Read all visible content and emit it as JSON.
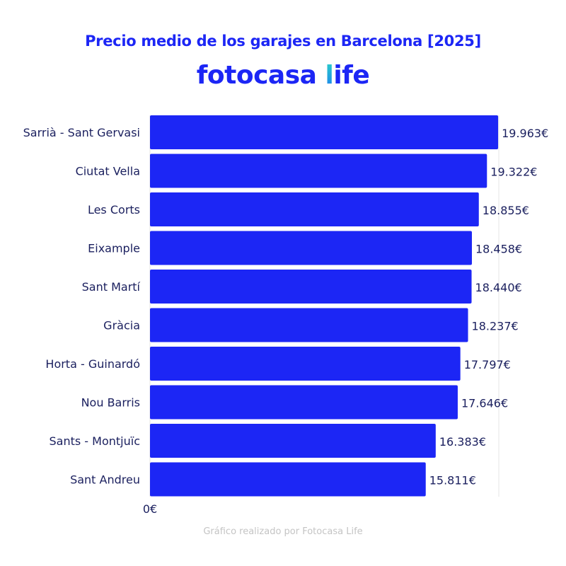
{
  "title": "Precio medio de los garajes en Barcelona [2025]",
  "logo": {
    "brand": "fotocasa",
    "suffix_first": "l",
    "suffix_rest": "ife"
  },
  "footer": "Gráfico realizado por Fotocasa Life",
  "colors": {
    "bar": "#1c26f5",
    "text": "#1a1f5e",
    "accent": "#1c26f5",
    "grid": "#e6e6e6"
  },
  "chart_data": {
    "type": "bar",
    "orientation": "horizontal",
    "title": "Precio medio de los garajes en Barcelona [2025]",
    "categories": [
      "Sarrià - Sant Gervasi",
      "Ciutat Vella",
      "Les Corts",
      "Eixample",
      "Sant Martí",
      "Gràcia",
      "Horta - Guinardó",
      "Nou Barris",
      "Sants - Montjuïc",
      "Sant Andreu"
    ],
    "values": [
      19963,
      19322,
      18855,
      18458,
      18440,
      18237,
      17797,
      17646,
      16383,
      15811
    ],
    "data_labels": [
      "19.963€",
      "19.322€",
      "18.855€",
      "18.458€",
      "18.440€",
      "18.237€",
      "17.797€",
      "17.646€",
      "16.383€",
      "15.811€"
    ],
    "xlim": [
      0,
      20000
    ],
    "x_tick_labels": [
      "0€"
    ],
    "grid": false
  }
}
